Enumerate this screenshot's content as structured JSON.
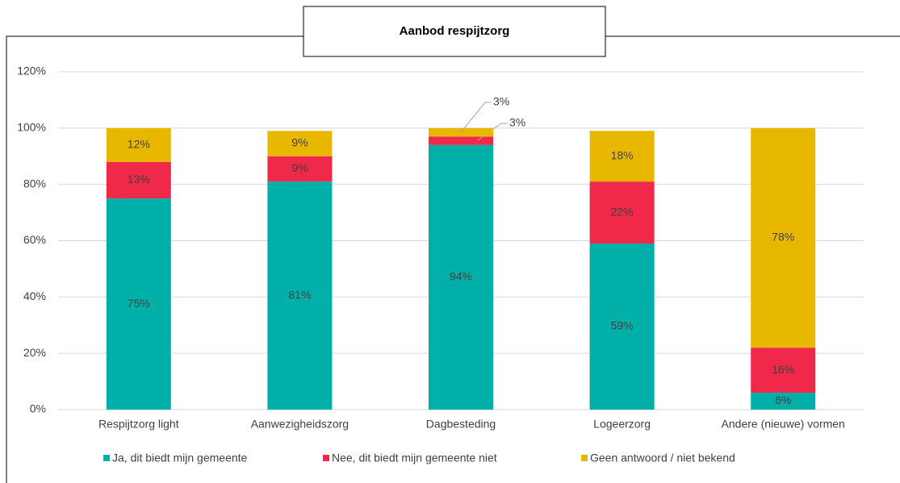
{
  "chart_data": {
    "type": "stacked_bar",
    "title": "Aanbod respijtzorg",
    "categories": [
      "Respijtzorg light",
      "Aanwezigheidszorg",
      "Dagbesteding",
      "Logeerzorg",
      "Andere (nieuwe) vormen"
    ],
    "series": [
      {
        "name": "Ja, dit biedt mijn gemeente",
        "color": "#00b0a8",
        "values": [
          75,
          81,
          94,
          59,
          6
        ],
        "value_labels": [
          "75%",
          "81%",
          "94%",
          "59%",
          "6%"
        ]
      },
      {
        "name": "Nee, dit biedt mijn gemeente niet",
        "color": "#f0284a",
        "values": [
          13,
          9,
          3,
          22,
          16
        ],
        "value_labels": [
          "13%",
          "9%",
          "3%",
          "22%",
          "16%"
        ]
      },
      {
        "name": "Geen antwoord / niet bekend",
        "color": "#e8b800",
        "values": [
          12,
          9,
          3,
          18,
          78
        ],
        "value_labels": [
          "12%",
          "9%",
          "3%",
          "18%",
          "78%"
        ]
      }
    ],
    "ylim": [
      0,
      120
    ],
    "yticks": [
      {
        "value": 0,
        "label": "0%"
      },
      {
        "value": 20,
        "label": "20%"
      },
      {
        "value": 40,
        "label": "40%"
      },
      {
        "value": 60,
        "label": "60%"
      },
      {
        "value": 80,
        "label": "80%"
      },
      {
        "value": 100,
        "label": "100%"
      },
      {
        "value": 120,
        "label": "120%"
      }
    ],
    "grid": true,
    "legend": "bottom"
  }
}
